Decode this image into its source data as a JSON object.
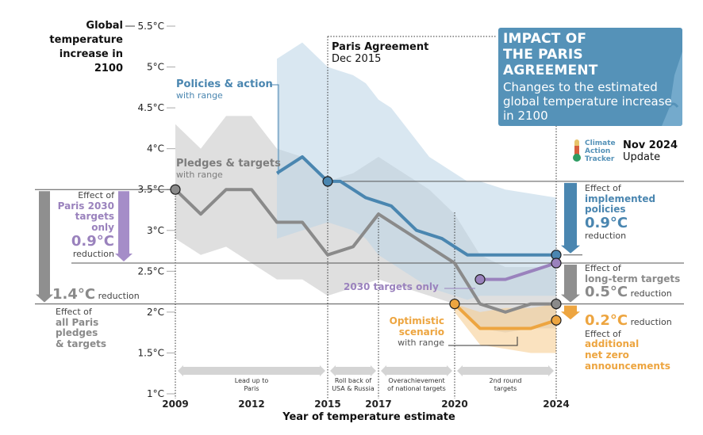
{
  "chart_data": {
    "type": "line",
    "title": "IMPACT OF THE PARIS AGREEMENT",
    "subtitle": "Changes to the estimated global temperature increase in 2100",
    "update": {
      "line1": "Nov 2024",
      "line2": "Update"
    },
    "logo_text": [
      "Climate",
      "Action",
      "Tracker"
    ],
    "ylabel": "Global temperature increase in 2100",
    "ylabel_lines": [
      "Global",
      "temperature",
      "increase in",
      "2100"
    ],
    "xlabel": "Year of temperature estimate",
    "xlim": [
      2009,
      2024
    ],
    "ylim": [
      1.0,
      5.5
    ],
    "x_ticks": [
      2009,
      2012,
      2015,
      2017,
      2020,
      2024
    ],
    "y_ticks": [
      {
        "value": 1.0,
        "label": "1°C"
      },
      {
        "value": 1.5,
        "label": "1.5°C"
      },
      {
        "value": 2.0,
        "label": "2°C"
      },
      {
        "value": 2.5,
        "label": "2.5°C"
      },
      {
        "value": 3.0,
        "label": "3°C"
      },
      {
        "value": 3.5,
        "label": "3.5°C"
      },
      {
        "value": 4.0,
        "label": "4°C"
      },
      {
        "value": 4.5,
        "label": "4.5°C"
      },
      {
        "value": 5.0,
        "label": "5°C"
      },
      {
        "value": 5.5,
        "label": "5.5°C"
      }
    ],
    "colors": {
      "policies": "#4a86b0",
      "pledges": "#8a8a8a",
      "targets2030": "#9a82bd",
      "optimistic": "#eda540",
      "dark": "#1e1e1e"
    },
    "series": [
      {
        "name": "Policies & action",
        "sublabel": "with range",
        "color": "#4a86b0",
        "x": [
          2013,
          2014,
          2015,
          2015.5,
          2016,
          2016.5,
          2017,
          2017.5,
          2018,
          2018.5,
          2019,
          2019.5,
          2020,
          2020.5,
          2021,
          2022,
          2023,
          2024
        ],
        "y": [
          3.7,
          3.9,
          3.6,
          3.6,
          3.5,
          3.4,
          3.35,
          3.3,
          3.15,
          3.0,
          2.95,
          2.9,
          2.8,
          2.7,
          2.7,
          2.7,
          2.7,
          2.7
        ],
        "range_low": [
          2.9,
          3.0,
          3.1,
          3.05,
          3.0,
          2.9,
          2.7,
          2.6,
          2.5,
          2.4,
          2.3,
          2.25,
          2.2,
          2.15,
          2.2,
          2.2,
          2.2,
          2.2
        ],
        "range_high": [
          5.1,
          5.3,
          5.0,
          4.95,
          4.9,
          4.8,
          4.6,
          4.5,
          4.3,
          4.1,
          3.9,
          3.8,
          3.7,
          3.6,
          3.6,
          3.5,
          3.45,
          3.4
        ]
      },
      {
        "name": "Pledges & targets",
        "sublabel": "with range",
        "color": "#8a8a8a",
        "x": [
          2009,
          2010,
          2011,
          2012,
          2013,
          2014,
          2015,
          2016,
          2017,
          2018,
          2019,
          2020,
          2021,
          2022,
          2023,
          2024
        ],
        "y": [
          3.5,
          3.2,
          3.5,
          3.5,
          3.1,
          3.1,
          2.7,
          2.8,
          3.2,
          3.0,
          2.8,
          2.6,
          2.1,
          2.0,
          2.1,
          2.1
        ],
        "range_low": [
          2.9,
          2.7,
          2.8,
          2.6,
          2.4,
          2.4,
          2.2,
          2.3,
          2.4,
          2.3,
          2.2,
          2.1,
          1.8,
          1.75,
          1.8,
          1.8
        ],
        "range_high": [
          4.3,
          4.0,
          4.4,
          4.4,
          4.0,
          3.9,
          3.6,
          3.7,
          3.9,
          3.7,
          3.5,
          3.2,
          2.7,
          2.55,
          2.55,
          2.55
        ]
      },
      {
        "name": "2030 targets only",
        "color": "#9a82bd",
        "x": [
          2021,
          2022,
          2023,
          2024
        ],
        "y": [
          2.4,
          2.4,
          2.5,
          2.6
        ]
      },
      {
        "name": "Optimistic scenario",
        "sublabel": "with range",
        "color": "#eda540",
        "x": [
          2020,
          2021,
          2022,
          2023,
          2024
        ],
        "y": [
          2.1,
          1.8,
          1.8,
          1.8,
          1.9
        ],
        "range_low": [
          2.0,
          1.6,
          1.55,
          1.5,
          1.5
        ],
        "range_high": [
          2.1,
          2.0,
          2.05,
          2.05,
          2.1
        ]
      }
    ],
    "markers": [
      {
        "x": 2009,
        "y": 3.5,
        "color": "#8a8a8a"
      },
      {
        "x": 2015,
        "y": 3.6,
        "color": "#4a86b0"
      },
      {
        "x": 2020,
        "y": 2.1,
        "color": "#eda540"
      },
      {
        "x": 2021,
        "y": 2.4,
        "color": "#9a82bd"
      },
      {
        "x": 2024,
        "y": 2.7,
        "color": "#4a86b0"
      },
      {
        "x": 2024,
        "y": 2.6,
        "color": "#9a82bd"
      },
      {
        "x": 2024,
        "y": 2.1,
        "color": "#8a8a8a"
      },
      {
        "x": 2024,
        "y": 1.9,
        "color": "#eda540"
      }
    ],
    "reference_lines": [
      3.6,
      3.5,
      2.7,
      2.6,
      2.1
    ],
    "annotations": {
      "paris": {
        "title": "Paris Agreement",
        "date": "Dec 2015"
      },
      "policies_label": "Policies & action",
      "policies_sub": "with range",
      "pledges_label": "Pledges & targets",
      "pledges_sub": "with range",
      "targets_label": "2030 targets only",
      "optimistic_label": [
        "Optimistic",
        "scenario"
      ],
      "optimistic_sub": "with range",
      "left_paris2030": {
        "pre": "Effect of",
        "bold": [
          "Paris 2030",
          "targets",
          "only"
        ],
        "value": "0.9°C",
        "post": "reduction"
      },
      "left_all": {
        "value": "1.4°C",
        "suffix": "reduction",
        "pre": "Effect of",
        "bold": [
          "all Paris",
          "pledges",
          "& targets"
        ]
      },
      "right_policies": {
        "pre": "Effect of",
        "bold": [
          "implemented",
          "policies"
        ],
        "value": "0.9°C",
        "post": "reduction"
      },
      "right_longterm": {
        "pre": "Effect of",
        "bold": "long-term targets",
        "value": "0.5°C",
        "post": "reduction"
      },
      "right_netzero": {
        "value": "0.2°C",
        "post": "reduction",
        "pre": "Effect of",
        "bold": [
          "additional",
          "net zero",
          "announcements"
        ]
      }
    },
    "phases": [
      {
        "label": [
          "Lead up to",
          "Paris"
        ],
        "x0": 2009,
        "x1": 2015
      },
      {
        "label": [
          "Roll back of",
          "USA & Russia"
        ],
        "x0": 2015,
        "x1": 2017
      },
      {
        "label": [
          "Overachievement",
          "of national targets"
        ],
        "x0": 2017,
        "x1": 2020
      },
      {
        "label": [
          "2nd round",
          "targets"
        ],
        "x0": 2020,
        "x1": 2024
      }
    ]
  }
}
